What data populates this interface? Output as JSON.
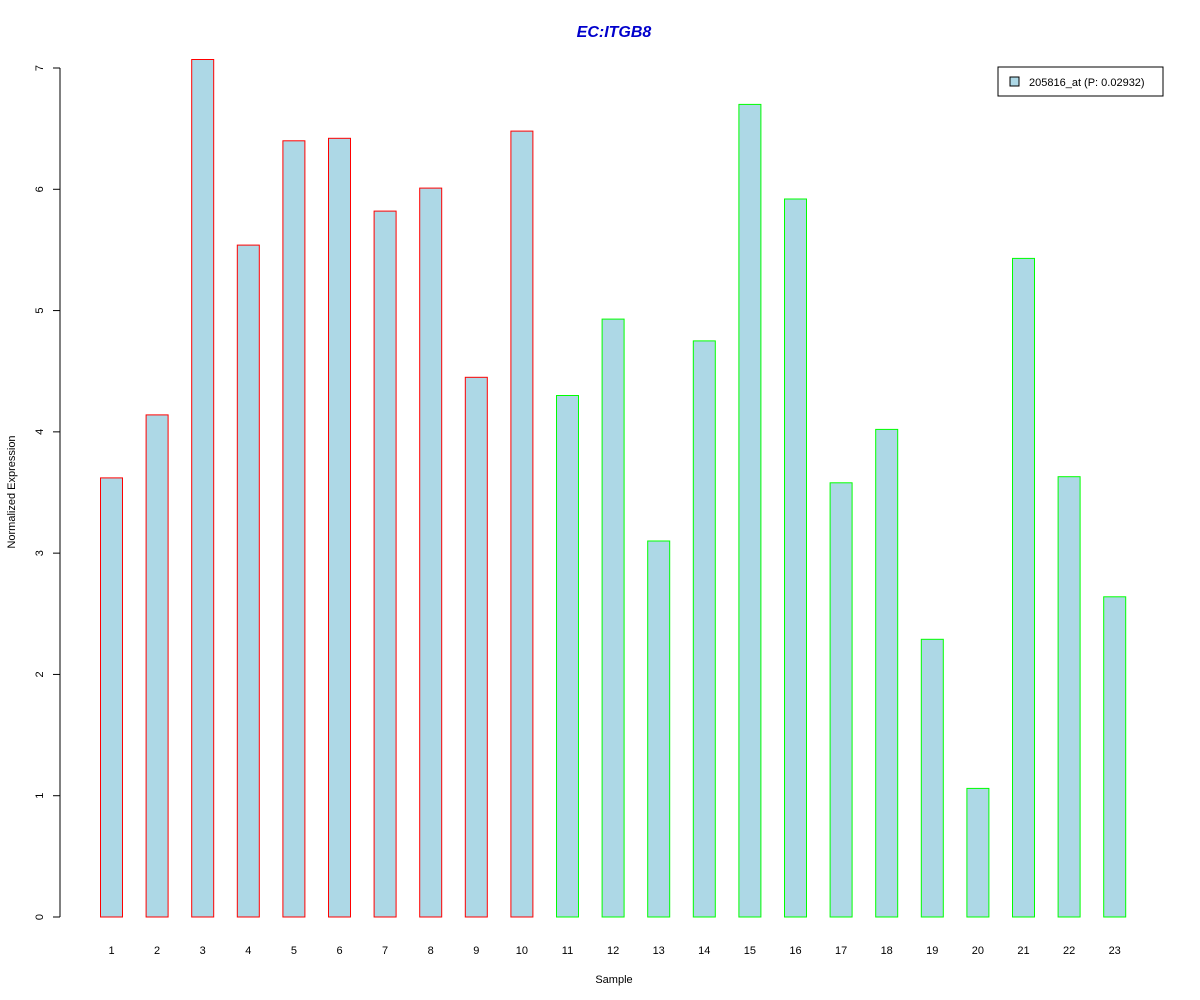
{
  "chart_data": {
    "type": "bar",
    "title": "EC:ITGB8",
    "xlabel": "Sample",
    "ylabel": "Normalized Expression",
    "ylim": [
      0,
      7
    ],
    "yticks": [
      0,
      1,
      2,
      3,
      4,
      5,
      6,
      7
    ],
    "grid": false,
    "legend_position": "top-right",
    "categories": [
      "1",
      "2",
      "3",
      "4",
      "5",
      "6",
      "7",
      "8",
      "9",
      "10",
      "11",
      "12",
      "13",
      "14",
      "15",
      "16",
      "17",
      "18",
      "19",
      "20",
      "21",
      "22",
      "23"
    ],
    "series": [
      {
        "name": "205816_at (P: 0.02932)",
        "values": [
          3.62,
          4.14,
          7.07,
          5.54,
          6.4,
          6.42,
          5.82,
          6.01,
          4.45,
          6.48,
          4.3,
          4.93,
          3.1,
          4.75,
          6.7,
          5.92,
          3.58,
          4.02,
          2.29,
          1.06,
          5.43,
          3.63,
          2.64
        ],
        "fill_color": "#ADD8E6"
      }
    ],
    "bar_border_colors": [
      "#FF0000",
      "#FF0000",
      "#FF0000",
      "#FF0000",
      "#FF0000",
      "#FF0000",
      "#FF0000",
      "#FF0000",
      "#FF0000",
      "#FF0000",
      "#00FF00",
      "#00FF00",
      "#00FF00",
      "#00FF00",
      "#00FF00",
      "#00FF00",
      "#00FF00",
      "#00FF00",
      "#00FF00",
      "#00FF00",
      "#00FF00",
      "#00FF00",
      "#00FF00"
    ]
  },
  "colors": {
    "title": "#0000CC",
    "axis": "#000000",
    "bar_fill": "#ADD8E6"
  }
}
